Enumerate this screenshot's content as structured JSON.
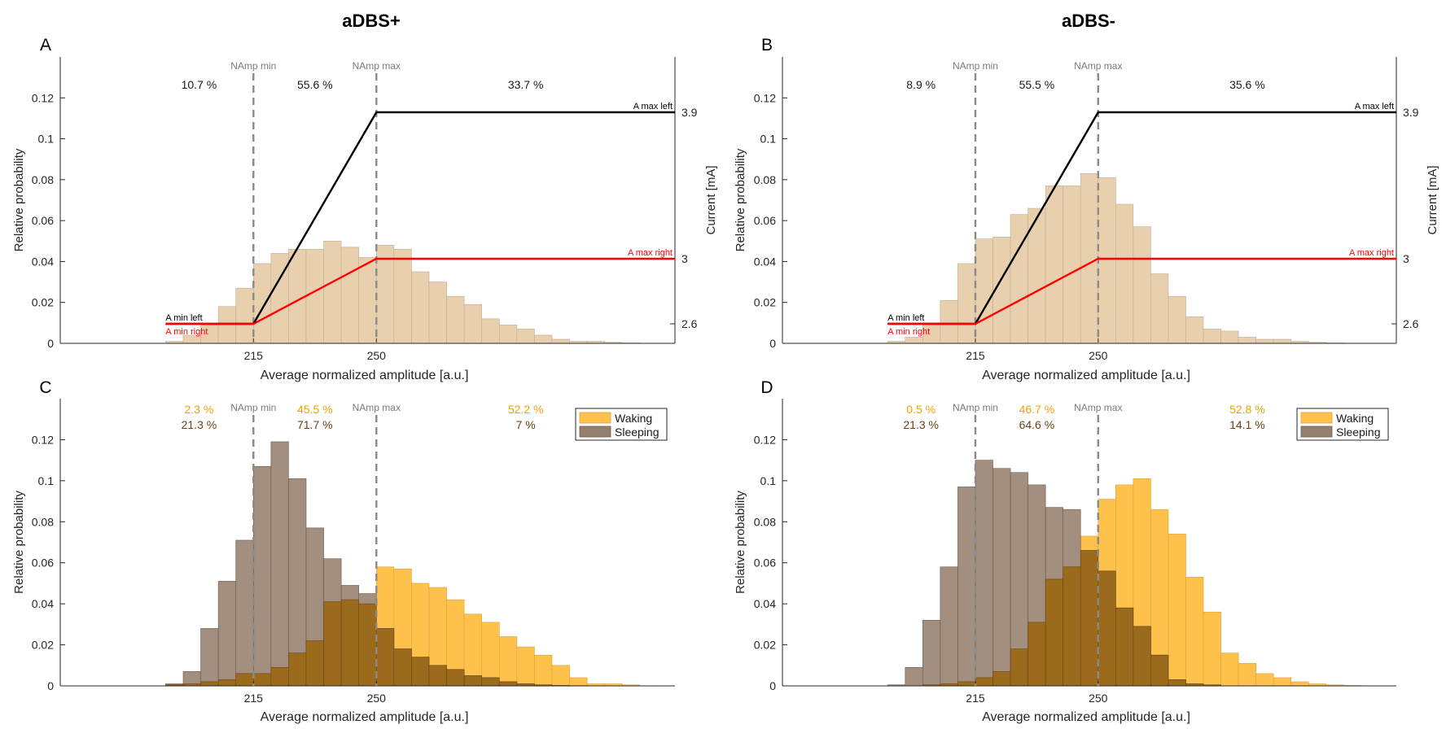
{
  "figure": {
    "title_left": "aDBS+",
    "title_right": "aDBS-"
  },
  "colors": {
    "histogram_single": "#e8cfae",
    "histogram_edge": "#bfae98",
    "waking": "#fdc14c",
    "sleeping": "#96806d",
    "overlap": "#9b6a1d",
    "guide_line": "#8a8a8a",
    "guide_label": "#7a7a7a",
    "map_left": "#000000",
    "map_right": "#ff0000",
    "waking_pct_text": "#f0a000",
    "sleeping_pct_text": "#6b3e12"
  },
  "chart_data": [
    {
      "panel": "A",
      "type": "histogram",
      "xlabel": "Average normalized amplitude [a.u.]",
      "ylabel": "Relative probability",
      "ylabel_right": "Current [mA]",
      "x_ticks": [
        215,
        250
      ],
      "x_tick_labels": [
        "215",
        "250"
      ],
      "y_ticks": [
        0,
        0.02,
        0.04,
        0.06,
        0.08,
        0.1,
        0.12
      ],
      "y_tick_labels": [
        "0",
        "0.02",
        "0.04",
        "0.06",
        "0.08",
        "0.1",
        "0.12"
      ],
      "xlim": [
        160,
        335
      ],
      "ylim": [
        0,
        0.14
      ],
      "right_axis": {
        "ylim": [
          2.48,
          4.24
        ],
        "ticks": [
          2.6,
          3,
          3.9
        ],
        "tick_labels": [
          "2.6",
          "3",
          "3.9"
        ]
      },
      "bin_width": 5,
      "bins_start": 190,
      "values": [
        0.001,
        0.004,
        0.009,
        0.018,
        0.027,
        0.039,
        0.044,
        0.046,
        0.046,
        0.05,
        0.047,
        0.042,
        0.048,
        0.046,
        0.035,
        0.03,
        0.023,
        0.019,
        0.012,
        0.009,
        0.007,
        0.004,
        0.002,
        0.001,
        0.001,
        0.0005,
        0.0002
      ],
      "thresholds": [
        {
          "x": 215,
          "label": "NAmp min"
        },
        {
          "x": 250,
          "label": "NAmp max"
        }
      ],
      "region_percents": [
        "10.7 %",
        "55.6 %",
        "33.7 %"
      ],
      "mapping_lines": [
        {
          "name": "left",
          "points": [
            [
              190,
              2.6
            ],
            [
              215,
              2.6
            ],
            [
              250,
              3.9
            ],
            [
              335,
              3.9
            ]
          ],
          "label_min": "A min left",
          "label_max": "A max left"
        },
        {
          "name": "right",
          "points": [
            [
              190,
              2.6
            ],
            [
              215,
              2.6
            ],
            [
              250,
              3
            ],
            [
              335,
              3
            ]
          ],
          "label_min": "A min right",
          "label_max": "A max right"
        }
      ]
    },
    {
      "panel": "B",
      "type": "histogram",
      "xlabel": "Average normalized amplitude [a.u.]",
      "ylabel": "Relative probability",
      "ylabel_right": "Current [mA]",
      "x_ticks": [
        215,
        250
      ],
      "x_tick_labels": [
        "215",
        "250"
      ],
      "y_ticks": [
        0,
        0.02,
        0.04,
        0.06,
        0.08,
        0.1,
        0.12
      ],
      "y_tick_labels": [
        "0",
        "0.02",
        "0.04",
        "0.06",
        "0.08",
        "0.1",
        "0.12"
      ],
      "xlim": [
        160,
        335
      ],
      "ylim": [
        0,
        0.14
      ],
      "right_axis": {
        "ylim": [
          2.48,
          4.24
        ],
        "ticks": [
          2.6,
          3,
          3.9
        ],
        "tick_labels": [
          "2.6",
          "3",
          "3.9"
        ]
      },
      "bin_width": 5,
      "bins_start": 190,
      "values": [
        0.001,
        0.003,
        0.01,
        0.021,
        0.039,
        0.051,
        0.052,
        0.063,
        0.066,
        0.077,
        0.077,
        0.083,
        0.081,
        0.068,
        0.057,
        0.034,
        0.023,
        0.013,
        0.007,
        0.006,
        0.003,
        0.002,
        0.002,
        0.001,
        0.0005,
        0.0002,
        0.0001
      ],
      "thresholds": [
        {
          "x": 215,
          "label": "NAmp min"
        },
        {
          "x": 250,
          "label": "NAmp max"
        }
      ],
      "region_percents": [
        "8.9 %",
        "55.5 %",
        "35.6 %"
      ],
      "mapping_lines": [
        {
          "name": "left",
          "points": [
            [
              190,
              2.6
            ],
            [
              215,
              2.6
            ],
            [
              250,
              3.9
            ],
            [
              335,
              3.9
            ]
          ],
          "label_min": "A min left",
          "label_max": "A max left"
        },
        {
          "name": "right",
          "points": [
            [
              190,
              2.6
            ],
            [
              215,
              2.6
            ],
            [
              250,
              3
            ],
            [
              335,
              3
            ]
          ],
          "label_min": "A min right",
          "label_max": "A max right"
        }
      ]
    },
    {
      "panel": "C",
      "type": "histogram",
      "xlabel": "Average normalized amplitude [a.u.]",
      "ylabel": "Relative probability",
      "x_ticks": [
        215,
        250
      ],
      "x_tick_labels": [
        "215",
        "250"
      ],
      "y_ticks": [
        0,
        0.02,
        0.04,
        0.06,
        0.08,
        0.1,
        0.12
      ],
      "y_tick_labels": [
        "0",
        "0.02",
        "0.04",
        "0.06",
        "0.08",
        "0.1",
        "0.12"
      ],
      "xlim": [
        160,
        335
      ],
      "ylim": [
        0,
        0.14
      ],
      "bin_width": 5,
      "bins_start": 190,
      "series": [
        {
          "name": "Waking",
          "values": [
            0.0005,
            0.001,
            0.002,
            0.003,
            0.006,
            0.006,
            0.009,
            0.016,
            0.022,
            0.041,
            0.042,
            0.04,
            0.058,
            0.057,
            0.05,
            0.048,
            0.042,
            0.035,
            0.031,
            0.024,
            0.019,
            0.015,
            0.01,
            0.004,
            0.001,
            0.001,
            0.0005
          ]
        },
        {
          "name": "Sleeping",
          "values": [
            0.001,
            0.007,
            0.028,
            0.051,
            0.071,
            0.107,
            0.119,
            0.101,
            0.077,
            0.062,
            0.049,
            0.045,
            0.028,
            0.018,
            0.014,
            0.01,
            0.008,
            0.005,
            0.004,
            0.002,
            0.001,
            0.0005,
            0.0002,
            0.0001,
            0,
            0,
            0
          ]
        }
      ],
      "thresholds": [
        {
          "x": 215,
          "label": "NAmp min"
        },
        {
          "x": 250,
          "label": "NAmp max"
        }
      ],
      "region_percents_waking": [
        "2.3 %",
        "45.5 %",
        "52.2 %"
      ],
      "region_percents_sleeping": [
        "21.3 %",
        "71.7 %",
        "7 %"
      ],
      "legend": [
        "Waking",
        "Sleeping"
      ],
      "legend_position": "top-right"
    },
    {
      "panel": "D",
      "type": "histogram",
      "xlabel": "Average normalized amplitude [a.u.]",
      "ylabel": "Relative probability",
      "x_ticks": [
        215,
        250
      ],
      "x_tick_labels": [
        "215",
        "250"
      ],
      "y_ticks": [
        0,
        0.02,
        0.04,
        0.06,
        0.08,
        0.1,
        0.12
      ],
      "y_tick_labels": [
        "0",
        "0.02",
        "0.04",
        "0.06",
        "0.08",
        "0.1",
        "0.12"
      ],
      "xlim": [
        160,
        335
      ],
      "ylim": [
        0,
        0.14
      ],
      "bin_width": 5,
      "bins_start": 190,
      "series": [
        {
          "name": "Waking",
          "values": [
            0,
            0,
            0.0005,
            0.001,
            0.002,
            0.004,
            0.007,
            0.018,
            0.031,
            0.052,
            0.058,
            0.073,
            0.091,
            0.098,
            0.101,
            0.086,
            0.074,
            0.053,
            0.036,
            0.016,
            0.011,
            0.006,
            0.004,
            0.002,
            0.001,
            0.0005,
            0.0002
          ]
        },
        {
          "name": "Sleeping",
          "values": [
            0.0005,
            0.009,
            0.032,
            0.058,
            0.097,
            0.11,
            0.106,
            0.104,
            0.098,
            0.087,
            0.086,
            0.066,
            0.056,
            0.038,
            0.029,
            0.015,
            0.003,
            0.001,
            0.0005,
            0,
            0,
            0,
            0,
            0,
            0,
            0,
            0
          ]
        }
      ],
      "thresholds": [
        {
          "x": 215,
          "label": "NAmp min"
        },
        {
          "x": 250,
          "label": "NAmp max"
        }
      ],
      "region_percents_waking": [
        "0.5 %",
        "46.7 %",
        "52.8 %"
      ],
      "region_percents_sleeping": [
        "21.3 %",
        "64.6 %",
        "14.1 %"
      ],
      "legend": [
        "Waking",
        "Sleeping"
      ],
      "legend_position": "top-right"
    }
  ]
}
